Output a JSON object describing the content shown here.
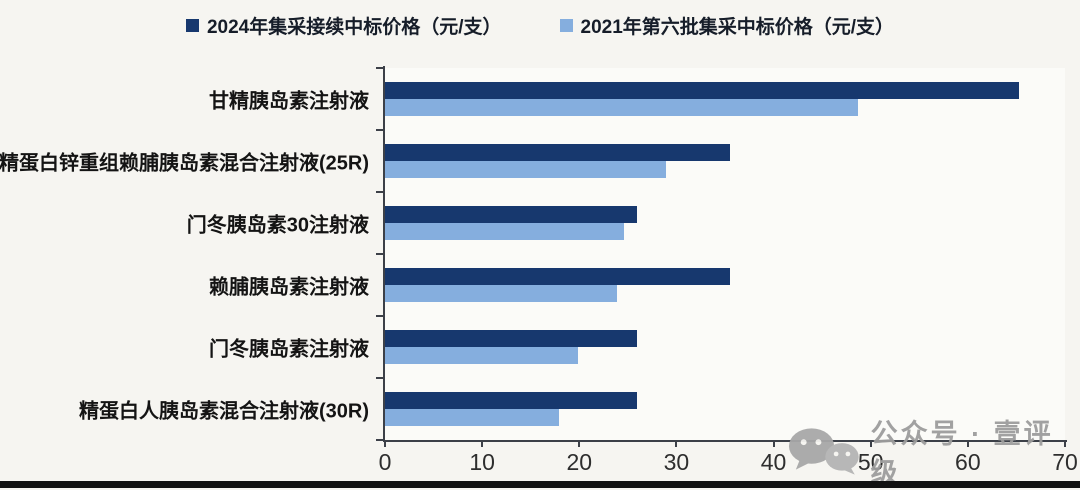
{
  "chart_data": {
    "type": "bar",
    "orientation": "horizontal",
    "categories": [
      "甘精胰岛素注射液",
      "精蛋白锌重组赖脯胰岛素混合注射液(25R)",
      "门冬胰岛素30注射液",
      "赖脯胰岛素注射液",
      "门冬胰岛素注射液",
      "精蛋白人胰岛素混合注射液(30R)"
    ],
    "series": [
      {
        "name": "2024年集采接续中标价格（元/支）",
        "color": "#17386e",
        "values": [
          65.3,
          35.5,
          25.9,
          35.5,
          25.9,
          25.9
        ]
      },
      {
        "name": "2021年第六批集采中标价格（元/支）",
        "color": "#85aede",
        "values": [
          48.7,
          28.9,
          24.6,
          23.9,
          19.9,
          17.9
        ]
      }
    ],
    "xlim": [
      0,
      70
    ],
    "xticks": [
      0,
      10,
      20,
      30,
      40,
      50,
      60,
      70
    ],
    "grid": false,
    "legend_position": "top",
    "title": "",
    "xlabel": "",
    "ylabel": ""
  },
  "watermark": {
    "text": "公众号 · 壹评级",
    "icon": "wechat-icon"
  }
}
